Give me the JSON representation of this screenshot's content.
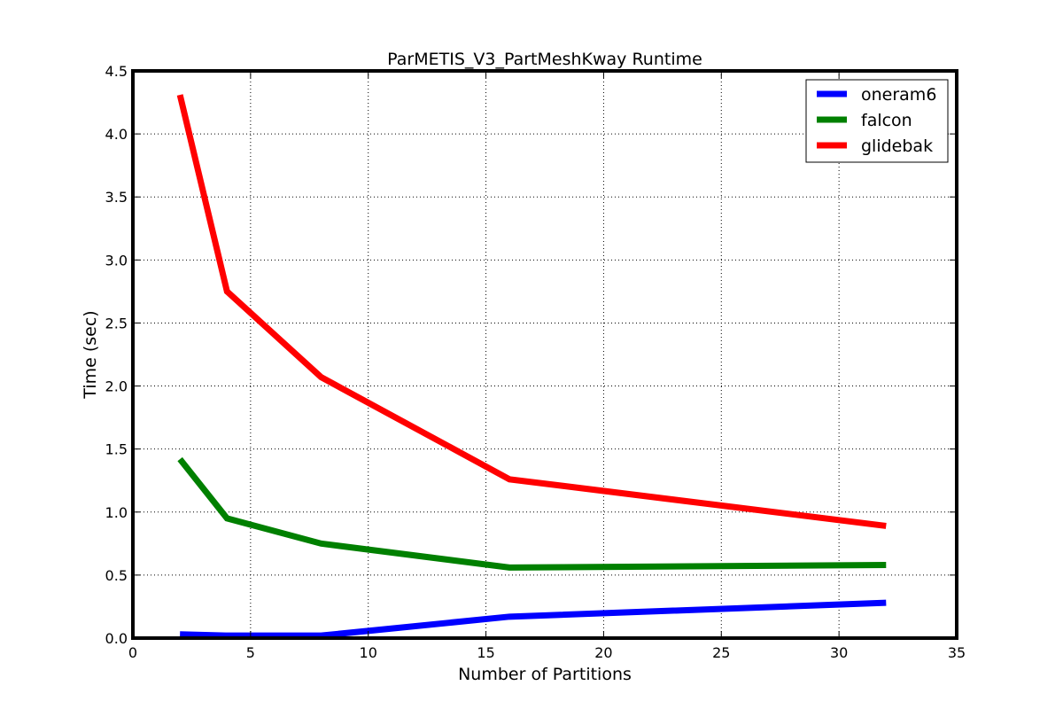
{
  "chart_data": {
    "type": "line",
    "title": "ParMETIS_V3_PartMeshKway Runtime",
    "xlabel": "Number of Partitions",
    "ylabel": "Time (sec)",
    "xlim": [
      0,
      35
    ],
    "ylim": [
      0,
      4.5
    ],
    "xticks": [
      0,
      5,
      10,
      15,
      20,
      25,
      30,
      35
    ],
    "xtick_labels": [
      "0",
      "5",
      "10",
      "15",
      "20",
      "25",
      "30",
      "35"
    ],
    "yticks": [
      0,
      0.5,
      1,
      1.5,
      2,
      2.5,
      3,
      3.5,
      4,
      4.5
    ],
    "ytick_labels": [
      "0.0",
      "0.5",
      "1.0",
      "1.5",
      "2.0",
      "2.5",
      "3.0",
      "3.5",
      "4.0",
      "4.5"
    ],
    "grid": true,
    "legend_position": "top-right",
    "x": [
      2,
      4,
      8,
      16,
      32
    ],
    "series": [
      {
        "name": "oneram6",
        "color": "#0000ff",
        "values": [
          0.03,
          0.02,
          0.02,
          0.17,
          0.28
        ]
      },
      {
        "name": "falcon",
        "color": "#008000",
        "values": [
          1.42,
          0.95,
          0.75,
          0.56,
          0.58
        ]
      },
      {
        "name": "glidebak",
        "color": "#ff0000",
        "values": [
          4.31,
          2.75,
          2.07,
          1.26,
          0.89
        ]
      }
    ]
  }
}
